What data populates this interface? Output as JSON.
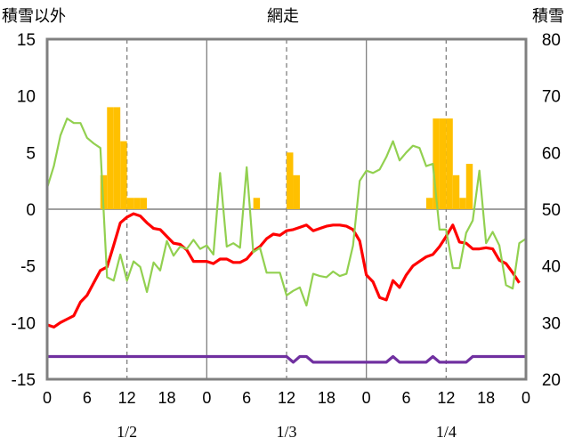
{
  "chart_data": {
    "type": "line",
    "title": "網走",
    "left_axis_label": "積雪以外",
    "right_axis_label": "積雪",
    "left_ylim": [
      -15,
      15
    ],
    "left_yticks": [
      -15,
      -10,
      -5,
      0,
      5,
      10,
      15
    ],
    "right_ylim": [
      20,
      80
    ],
    "right_yticks": [
      20,
      30,
      40,
      50,
      60,
      70,
      80
    ],
    "xlim_hours": [
      0,
      72
    ],
    "x_tick_labels": [
      "0",
      "6",
      "12",
      "18",
      "0",
      "6",
      "12",
      "18",
      "0",
      "6",
      "12",
      "18",
      "0"
    ],
    "date_labels": [
      "1/2",
      "1/3",
      "1/4"
    ],
    "grid": "vertical lines at day boundaries (solid) and at 12h (dashed); horizontal line at 0",
    "colors": {
      "frame": "#808080",
      "bars": "#ffc000",
      "temperature": "#ff0000",
      "humidity_like": "#92d050",
      "snow_depth": "#7030a0"
    },
    "series": [
      {
        "kind": "bar",
        "axis": "left",
        "values": [
          [
            8,
            3
          ],
          [
            9,
            9
          ],
          [
            10,
            9
          ],
          [
            11,
            6
          ],
          [
            12,
            1
          ],
          [
            13,
            1
          ],
          [
            14,
            1
          ],
          [
            31,
            1
          ],
          [
            36,
            5
          ],
          [
            37,
            3
          ],
          [
            57,
            1
          ],
          [
            58,
            8
          ],
          [
            59,
            8
          ],
          [
            60,
            8
          ],
          [
            61,
            3
          ],
          [
            62,
            1
          ],
          [
            63,
            4
          ]
        ]
      },
      {
        "kind": "line",
        "axis": "left",
        "color": "#ff0000",
        "values": [
          [
            0,
            -10.2
          ],
          [
            1,
            -10.4
          ],
          [
            2,
            -10
          ],
          [
            3,
            -9.7
          ],
          [
            4,
            -9.4
          ],
          [
            5,
            -8.2
          ],
          [
            6,
            -7.6
          ],
          [
            7,
            -6.5
          ],
          [
            8,
            -5.4
          ],
          [
            9,
            -5.1
          ],
          [
            10,
            -3.2
          ],
          [
            11,
            -1.2
          ],
          [
            12,
            -0.7
          ],
          [
            13,
            -0.4
          ],
          [
            14,
            -0.6
          ],
          [
            15,
            -1.2
          ],
          [
            16,
            -1.7
          ],
          [
            17,
            -1.8
          ],
          [
            18,
            -2.4
          ],
          [
            19,
            -3
          ],
          [
            20,
            -3.1
          ],
          [
            21,
            -3.6
          ],
          [
            22,
            -4.6
          ],
          [
            23,
            -4.6
          ],
          [
            24,
            -4.6
          ],
          [
            25,
            -4.8
          ],
          [
            26,
            -4.4
          ],
          [
            27,
            -4.4
          ],
          [
            28,
            -4.7
          ],
          [
            29,
            -4.7
          ],
          [
            30,
            -4.4
          ],
          [
            31,
            -3.7
          ],
          [
            32,
            -3.3
          ],
          [
            33,
            -2.6
          ],
          [
            34,
            -2.2
          ],
          [
            35,
            -2.3
          ],
          [
            36,
            -1.9
          ],
          [
            37,
            -1.8
          ],
          [
            38,
            -1.6
          ],
          [
            39,
            -1.4
          ],
          [
            40,
            -1.9
          ],
          [
            41,
            -1.7
          ],
          [
            42,
            -1.5
          ],
          [
            43,
            -1.4
          ],
          [
            44,
            -1.4
          ],
          [
            45,
            -1.5
          ],
          [
            46,
            -1.8
          ],
          [
            47,
            -2.8
          ],
          [
            48,
            -5.8
          ],
          [
            49,
            -6.4
          ],
          [
            50,
            -7.8
          ],
          [
            51,
            -8
          ],
          [
            52,
            -6.3
          ],
          [
            53,
            -6.9
          ],
          [
            54,
            -5.8
          ],
          [
            55,
            -5
          ],
          [
            56,
            -4.6
          ],
          [
            57,
            -4.2
          ],
          [
            58,
            -4
          ],
          [
            59,
            -3.3
          ],
          [
            60,
            -2.4
          ],
          [
            61,
            -1.4
          ],
          [
            62,
            -2.9
          ],
          [
            63,
            -3
          ],
          [
            64,
            -3.5
          ],
          [
            65,
            -3.5
          ],
          [
            66,
            -3.4
          ],
          [
            67,
            -3.5
          ],
          [
            68,
            -4.5
          ],
          [
            69,
            -4.8
          ],
          [
            70,
            -5.6
          ],
          [
            71,
            -6.5
          ]
        ]
      },
      {
        "kind": "line",
        "axis": "left",
        "color": "#92d050",
        "values": [
          [
            0,
            1.9
          ],
          [
            1,
            3.8
          ],
          [
            2,
            6.5
          ],
          [
            3,
            8
          ],
          [
            4,
            7.6
          ],
          [
            5,
            7.6
          ],
          [
            6,
            6.3
          ],
          [
            7,
            5.8
          ],
          [
            8,
            5.4
          ],
          [
            9,
            -6
          ],
          [
            10,
            -6.3
          ],
          [
            11,
            -4
          ],
          [
            12,
            -6.3
          ],
          [
            13,
            -4.6
          ],
          [
            14,
            -5.1
          ],
          [
            15,
            -7.3
          ],
          [
            16,
            -4.7
          ],
          [
            17,
            -5.4
          ],
          [
            18,
            -2.8
          ],
          [
            19,
            -4.1
          ],
          [
            20,
            -3.3
          ],
          [
            21,
            -3.5
          ],
          [
            22,
            -2.7
          ],
          [
            23,
            -3.5
          ],
          [
            24,
            -3.2
          ],
          [
            25,
            -4
          ],
          [
            26,
            3.2
          ],
          [
            27,
            -3.3
          ],
          [
            28,
            -3
          ],
          [
            29,
            -3.4
          ],
          [
            30,
            3.7
          ],
          [
            31,
            -3.8
          ],
          [
            32,
            -3.4
          ],
          [
            33,
            -5.6
          ],
          [
            34,
            -5.6
          ],
          [
            35,
            -5.6
          ],
          [
            36,
            -7.6
          ],
          [
            37,
            -7.2
          ],
          [
            38,
            -6.9
          ],
          [
            39,
            -8.5
          ],
          [
            40,
            -5.7
          ],
          [
            41,
            -5.9
          ],
          [
            42,
            -6
          ],
          [
            43,
            -5.5
          ],
          [
            44,
            -5.9
          ],
          [
            45,
            -5.7
          ],
          [
            46,
            -3.2
          ],
          [
            47,
            2.5
          ],
          [
            48,
            3.4
          ],
          [
            49,
            3.2
          ],
          [
            50,
            3.5
          ],
          [
            51,
            4.6
          ],
          [
            52,
            6
          ],
          [
            53,
            4.3
          ],
          [
            54,
            5
          ],
          [
            55,
            5.6
          ],
          [
            56,
            5.4
          ],
          [
            57,
            3.8
          ],
          [
            58,
            4
          ],
          [
            59,
            -1.8
          ],
          [
            60,
            -1.8
          ],
          [
            61,
            -5.2
          ],
          [
            62,
            -5.2
          ],
          [
            63,
            -2.1
          ],
          [
            64,
            -1
          ],
          [
            65,
            3.4
          ],
          [
            66,
            -3
          ],
          [
            67,
            -2
          ],
          [
            68,
            -3.2
          ],
          [
            69,
            -6.7
          ],
          [
            70,
            -7
          ],
          [
            71,
            -3
          ],
          [
            72,
            -2.6
          ]
        ]
      },
      {
        "kind": "line",
        "axis": "right",
        "color": "#7030a0",
        "values": [
          [
            0,
            24
          ],
          [
            36,
            24
          ],
          [
            37,
            23
          ],
          [
            38,
            24
          ],
          [
            39,
            24
          ],
          [
            40,
            23
          ],
          [
            47,
            23
          ],
          [
            48,
            23
          ],
          [
            51,
            23
          ],
          [
            52,
            24
          ],
          [
            53,
            23
          ],
          [
            57,
            23
          ],
          [
            58,
            24
          ],
          [
            59,
            23
          ],
          [
            63,
            23
          ],
          [
            64,
            24
          ],
          [
            72,
            24
          ]
        ]
      }
    ]
  }
}
